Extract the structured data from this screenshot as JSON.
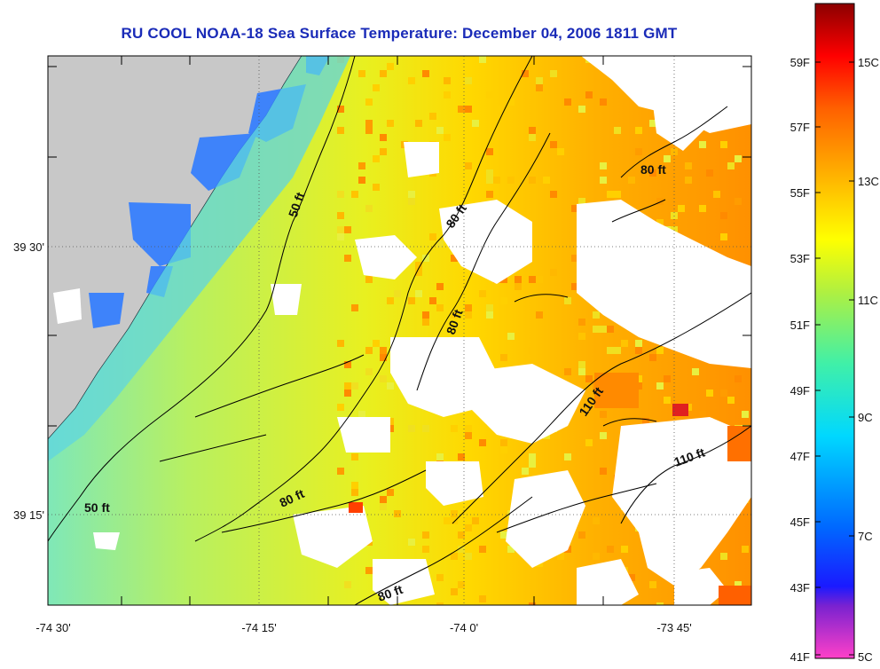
{
  "title": "RU COOL  NOAA-18  Sea Surface Temperature:  December 04, 2006 1811 GMT",
  "map": {
    "x_ticks": [
      "-74 30'",
      "-74 15'",
      "-74 0'",
      "-73 45'"
    ],
    "y_ticks": [
      "39 30'",
      "39 15'"
    ],
    "contour_labels": [
      "50 ft",
      "50 ft",
      "80 ft",
      "80 ft",
      "80 ft",
      "80 ft",
      "80 ft",
      "110 ft",
      "110 ft"
    ],
    "colors": {
      "land": "#c8c8c8",
      "cloud": "#ffffff",
      "contour": "#000000"
    }
  },
  "colorbar": {
    "f_labels": [
      "59F",
      "57F",
      "55F",
      "53F",
      "51F",
      "49F",
      "47F",
      "45F",
      "43F",
      "41F"
    ],
    "c_labels": [
      "15C",
      "13C",
      "11C",
      "9C",
      "7C",
      "5C"
    ],
    "stops": [
      "#ff40c8",
      "#7a22d0",
      "#1a1aff",
      "#0068ff",
      "#00d8ff",
      "#40f0a8",
      "#b0f040",
      "#ffff00",
      "#ffb000",
      "#ff6000",
      "#ff0000",
      "#8b0000"
    ]
  }
}
